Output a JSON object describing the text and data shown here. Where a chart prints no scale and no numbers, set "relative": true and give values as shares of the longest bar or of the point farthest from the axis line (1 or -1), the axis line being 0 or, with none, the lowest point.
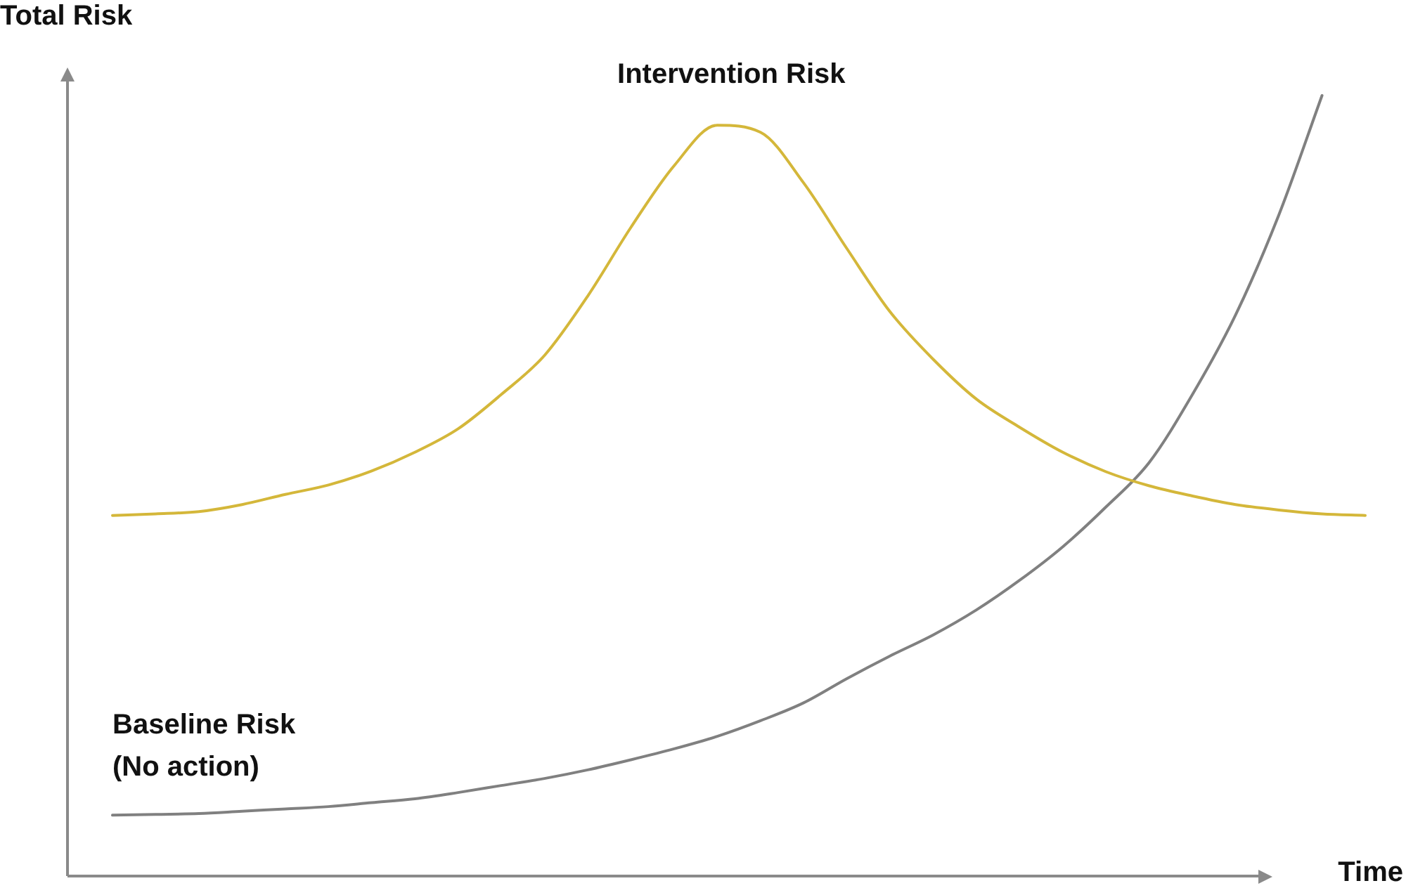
{
  "chart_data": {
    "type": "line",
    "relative": true,
    "xlabel": "Time",
    "ylabel": "Total Risk",
    "marker": "none",
    "categories": [
      null,
      null,
      null,
      null,
      null,
      null,
      null,
      null,
      null,
      null,
      null,
      null,
      null,
      null,
      null,
      null,
      null,
      null,
      null,
      null,
      null,
      null,
      null,
      null,
      null,
      null,
      null,
      null,
      null,
      null
    ],
    "series": [
      {
        "name": "Intervention Risk",
        "color": "#d4b73a",
        "values": [
          0.462,
          0.464,
          0.467,
          0.476,
          0.489,
          0.501,
          0.519,
          0.543,
          0.573,
          0.617,
          0.667,
          0.743,
          0.831,
          0.91,
          0.962,
          0.953,
          0.888,
          0.804,
          0.723,
          0.662,
          0.611,
          0.575,
          0.543,
          0.518,
          0.5,
          0.487,
          0.476,
          0.469,
          0.464,
          0.462
        ]
      },
      {
        "name": "Baseline Risk\n(No action)",
        "color": "#808080",
        "values": [
          0.078,
          0.079,
          0.08,
          0.083,
          0.086,
          0.089,
          0.094,
          0.099,
          0.107,
          0.116,
          0.125,
          0.136,
          0.149,
          0.163,
          0.179,
          0.199,
          0.222,
          0.253,
          0.282,
          0.309,
          0.341,
          0.379,
          0.422,
          0.473,
          0.53,
          0.617,
          0.719,
          0.847,
          1.0,
          null
        ]
      }
    ]
  }
}
